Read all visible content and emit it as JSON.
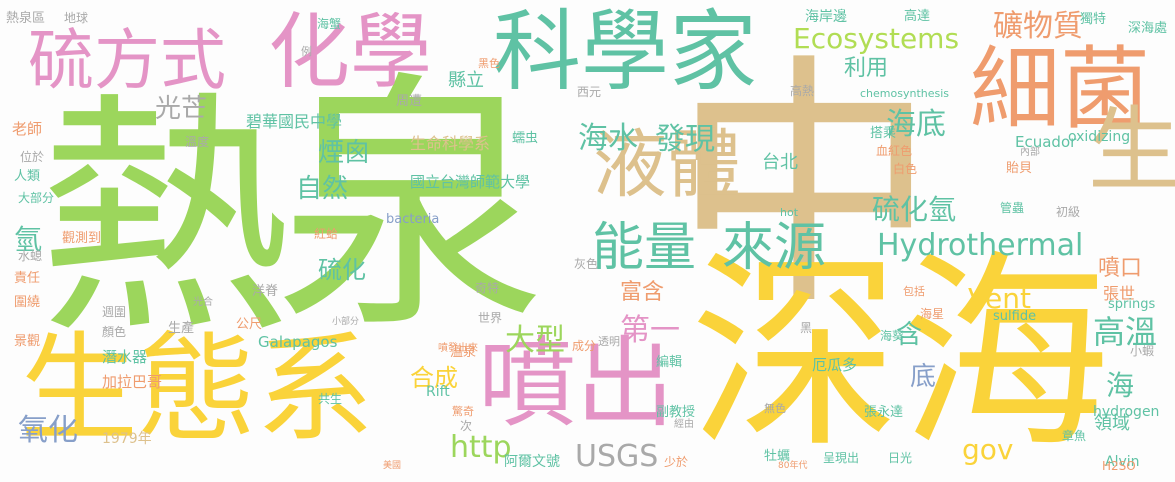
{
  "palette": {
    "green": "#9cd65c",
    "yellow": "#fad33a",
    "tan": "#ddc18d",
    "teal": "#5fc2a4",
    "pink": "#e494c6",
    "orange": "#ef9c6e",
    "lime": "#b1dd54",
    "blue": "#879fc9",
    "grey": "#a9a9a9"
  },
  "words": [
    "熱",
    "泉",
    "中",
    "深海",
    "生態系",
    "噴出",
    "科學家",
    "化學",
    "細菌",
    "液體",
    "生物",
    "硫方式",
    "能量",
    "來源",
    "Hydrothermal",
    "Ecosystems",
    "礦物質",
    "USGS",
    "http",
    "海底",
    "海水",
    "發現",
    "硫化氫",
    "大型",
    "第一",
    "高溫",
    "氧化",
    "煙囪",
    "自然",
    "硫化",
    "Vent",
    "gov",
    "合成",
    "富含",
    "噴口",
    "含",
    "海",
    "底",
    "氫",
    "光芒",
    "利用",
    "碧華國民中學",
    "國立台灣師範大學",
    "縣立",
    "生命科學系",
    "台北",
    "張世",
    "領域",
    "1979年",
    "阿爾文號",
    "潛水器",
    "加拉巴哥",
    "Galapagos",
    "厄瓜多",
    "Ecuador",
    "bacteria",
    "sulfide",
    "oxidizing",
    "hydrogen",
    "springs",
    "chemosynthesis",
    "Alvin",
    "Rift",
    "海岸邊",
    "深海處",
    "獨特",
    "高達",
    "海蟹",
    "熱泉區",
    "地球",
    "老師",
    "人類",
    "溫度",
    "周遭",
    "西元",
    "高熱",
    "位於",
    "大部分",
    "觀測到",
    "紅蛤",
    "水螅",
    "責任",
    "圍繞",
    "景觀",
    "共生",
    "世界",
    "奇特",
    "成分",
    "副教授",
    "編輯",
    "驚奇",
    "張永達",
    "牡蠣",
    "章魚",
    "日光",
    "呈現出",
    "少於",
    "白色",
    "搭乘",
    "血紅色",
    "貽貝",
    "管蟲",
    "海葵",
    "海星",
    "小蝦",
    "初級",
    "內部",
    "公尺",
    "洋脊",
    "溫泉",
    "生產",
    "顏色",
    "週圍",
    "透明",
    "噴發出來",
    "黑",
    "次",
    "無色",
    "經由",
    "灰色",
    "光合",
    "H2SO",
    "hot",
    "蠕虫",
    "包括",
    "黑色",
    "例",
    "小部分",
    "美國",
    "80年代"
  ]
}
